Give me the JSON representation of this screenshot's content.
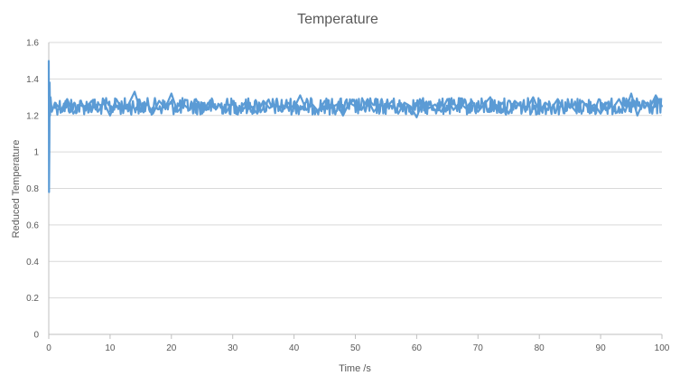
{
  "chart_data": {
    "type": "line",
    "title": "Temperature",
    "xlabel": "Time /s",
    "ylabel": "Reduced Temperature",
    "xlim": [
      0,
      100
    ],
    "ylim": [
      0,
      1.6
    ],
    "x_ticks": [
      0,
      10,
      20,
      30,
      40,
      50,
      60,
      70,
      80,
      90,
      100
    ],
    "y_ticks": [
      0,
      0.2,
      0.4,
      0.6,
      0.8,
      1,
      1.2,
      1.4,
      1.6
    ],
    "y_tick_labels": [
      "0",
      "0.2",
      "0.4",
      "0.6",
      "0.8",
      "1",
      "1.2",
      "1.4",
      "1.6"
    ],
    "grid": "horizontal",
    "legend": "none",
    "series": [
      {
        "color": "#5b9bd5",
        "x": [
          0,
          0.05,
          0.1,
          0.15,
          0.2,
          0.3,
          0.5,
          1,
          2,
          3,
          4,
          5,
          6,
          7,
          8,
          9,
          10,
          11,
          12,
          13,
          14,
          15,
          16,
          17,
          18,
          19,
          20,
          21,
          22,
          23,
          24,
          25,
          26,
          27,
          28,
          29,
          30,
          31,
          32,
          33,
          34,
          35,
          36,
          37,
          38,
          39,
          40,
          41,
          42,
          43,
          44,
          45,
          46,
          47,
          48,
          49,
          50,
          51,
          52,
          53,
          54,
          55,
          56,
          57,
          58,
          59,
          60,
          61,
          62,
          63,
          64,
          65,
          66,
          67,
          68,
          69,
          70,
          71,
          72,
          73,
          74,
          75,
          76,
          77,
          78,
          79,
          80,
          81,
          82,
          83,
          84,
          85,
          86,
          87,
          88,
          89,
          90,
          91,
          92,
          93,
          94,
          95,
          96,
          97,
          98,
          99,
          100
        ],
        "y": [
          1.5,
          0.78,
          1.05,
          1.38,
          1.2,
          1.3,
          1.22,
          1.27,
          1.23,
          1.29,
          1.21,
          1.26,
          1.24,
          1.28,
          1.22,
          1.27,
          1.2,
          1.29,
          1.23,
          1.26,
          1.33,
          1.22,
          1.27,
          1.21,
          1.28,
          1.24,
          1.32,
          1.22,
          1.26,
          1.23,
          1.29,
          1.21,
          1.27,
          1.24,
          1.26,
          1.22,
          1.28,
          1.23,
          1.27,
          1.25,
          1.21,
          1.28,
          1.24,
          1.26,
          1.22,
          1.27,
          1.24,
          1.31,
          1.23,
          1.26,
          1.22,
          1.28,
          1.24,
          1.26,
          1.2,
          1.27,
          1.25,
          1.23,
          1.29,
          1.22,
          1.26,
          1.24,
          1.28,
          1.21,
          1.27,
          1.25,
          1.19,
          1.28,
          1.24,
          1.26,
          1.22,
          1.29,
          1.23,
          1.27,
          1.24,
          1.28,
          1.22,
          1.26,
          1.3,
          1.23,
          1.27,
          1.21,
          1.28,
          1.25,
          1.24,
          1.3,
          1.22,
          1.27,
          1.24,
          1.29,
          1.23,
          1.26,
          1.22,
          1.28,
          1.24,
          1.26,
          1.21,
          1.27,
          1.24,
          1.29,
          1.22,
          1.32,
          1.2,
          1.28,
          1.24,
          1.31,
          1.25
        ]
      }
    ]
  }
}
